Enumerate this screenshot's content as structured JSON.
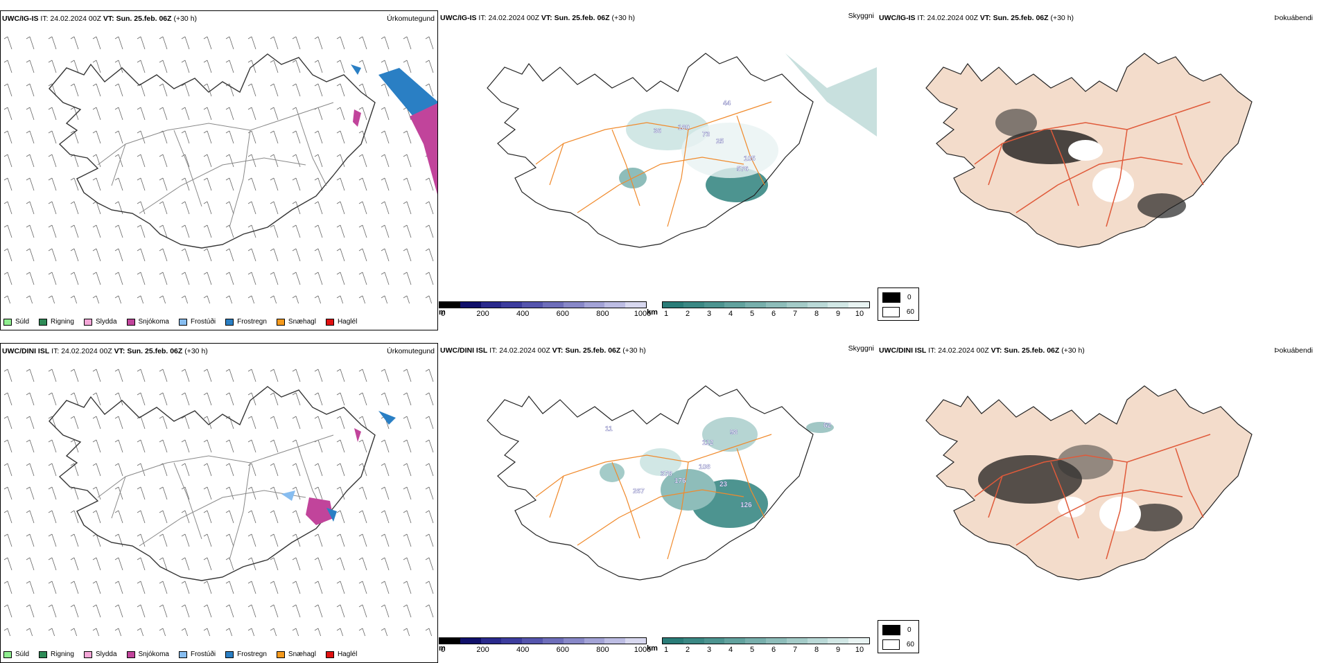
{
  "rows": [
    {
      "model": "UWC/IG-IS",
      "it_label": "IT:",
      "it_value": "24.02.2024 00Z",
      "vt_label": "VT:",
      "vt_value": "Sun. 25.feb. 06Z",
      "lead": "(+30 h)",
      "panels": {
        "precip_type": "Úrkomutegund",
        "cloud_base": "Skyggni",
        "fog": "Þokuábendi"
      }
    },
    {
      "model": "UWC/DINI ISL",
      "it_label": "IT:",
      "it_value": "24.02.2024 00Z",
      "vt_label": "VT:",
      "vt_value": "Sun. 25.feb. 06Z",
      "lead": "(+30 h)",
      "panels": {
        "precip_type": "Úrkomutegund",
        "cloud_base": "Skyggni",
        "fog": "Þokuábendi"
      }
    }
  ],
  "precip_legend": [
    {
      "label": "Súld",
      "color": "#90ee90"
    },
    {
      "label": "Rigning",
      "color": "#2e8b57"
    },
    {
      "label": "Slydda",
      "color": "#f4a6d7"
    },
    {
      "label": "Snjókoma",
      "color": "#c1449b"
    },
    {
      "label": "Frostúði",
      "color": "#87bdf0"
    },
    {
      "label": "Frostregn",
      "color": "#2a7fc4"
    },
    {
      "label": "Snæhagl",
      "color": "#f59a1d"
    },
    {
      "label": "Haglél",
      "color": "#e01010"
    }
  ],
  "ceiling_bar": {
    "unit": "m",
    "ticks": [
      "0",
      "200",
      "400",
      "600",
      "800",
      "1000"
    ],
    "colors": [
      "#000000",
      "#10106a",
      "#2a2a8c",
      "#3d3d9e",
      "#5555ad",
      "#6e6eba",
      "#8888c8",
      "#a3a3d6",
      "#bdbde3",
      "#d8d8ef"
    ]
  },
  "visibility_bar": {
    "unit": "km",
    "ticks": [
      "1",
      "2",
      "3",
      "4",
      "5",
      "6",
      "7",
      "8",
      "9",
      "10"
    ],
    "colors": [
      "#2a7c78",
      "#3b8884",
      "#4d9490",
      "#62a29e",
      "#78afac",
      "#8ebdba",
      "#a4cbc8",
      "#bad9d7",
      "#d1e7e5",
      "#e8f3f2"
    ]
  },
  "fog_legend": [
    {
      "label": "0",
      "color": "#000000"
    },
    {
      "label": "60",
      "color": "#ffffff"
    }
  ],
  "map_labels": {
    "row0": [
      "36",
      "180",
      "25",
      "105",
      "576",
      "73",
      "44"
    ],
    "row1": [
      "11",
      "98",
      "108",
      "378",
      "267",
      "176",
      "23",
      "126",
      "112",
      "62"
    ]
  }
}
